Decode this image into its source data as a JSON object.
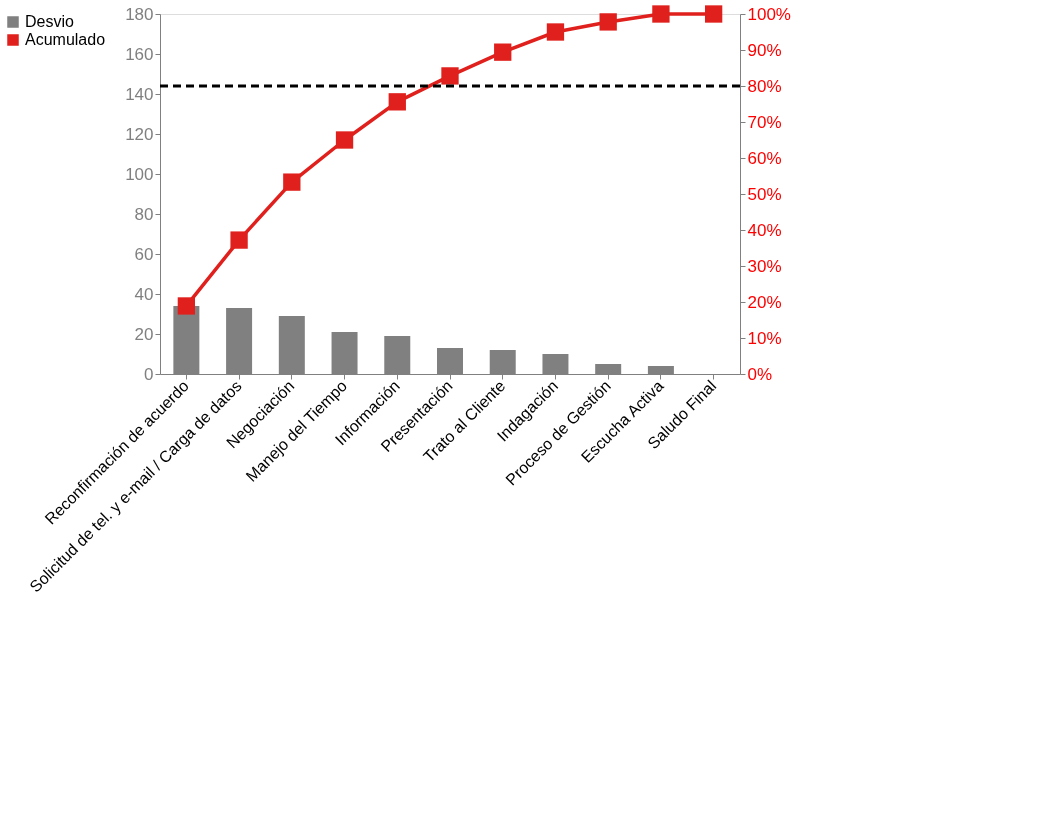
{
  "chart_data": {
    "type": "bar",
    "categories": [
      "Reconfirmación de acuerdo",
      "Solicitud de tel. y e-mail / Carga de datos",
      "Negociación",
      "Manejo del Tiempo",
      "Información",
      "Presentación",
      "Trato al Cliente",
      "Indagación",
      "Proceso de Gestión",
      "Escucha Activa",
      "Saludo Final"
    ],
    "series": [
      {
        "name": "Desvio",
        "color": "#808080",
        "values": [
          34,
          33,
          29,
          21,
          19,
          13,
          12,
          10,
          5,
          4,
          0
        ]
      },
      {
        "name": "Acumulado",
        "type": "line",
        "axis": "y2",
        "color": "#e0201c",
        "marker": "square",
        "values": [
          18.9,
          37.2,
          53.3,
          65,
          75.6,
          82.8,
          89.4,
          95,
          97.8,
          100,
          100
        ]
      }
    ],
    "ylim": [
      0,
      180
    ],
    "yticks": [
      0,
      20,
      40,
      60,
      80,
      100,
      120,
      140,
      160,
      180
    ],
    "y2lim": [
      0,
      100
    ],
    "y2ticks": [
      {
        "value": 0,
        "label": "0%"
      },
      {
        "value": 10,
        "label": "10%"
      },
      {
        "value": 20,
        "label": "20%"
      },
      {
        "value": 30,
        "label": "30%"
      },
      {
        "value": 40,
        "label": "40%"
      },
      {
        "value": 50,
        "label": "50%"
      },
      {
        "value": 60,
        "label": "60%"
      },
      {
        "value": 70,
        "label": "70%"
      },
      {
        "value": 80,
        "label": "80%"
      },
      {
        "value": 90,
        "label": "90%"
      },
      {
        "value": 100,
        "label": "100%"
      }
    ],
    "ref_lines": [
      {
        "axis": "y2",
        "value": 80,
        "color": "#000000",
        "line_style": "dashed"
      }
    ],
    "legend": "left",
    "grid": false
  }
}
